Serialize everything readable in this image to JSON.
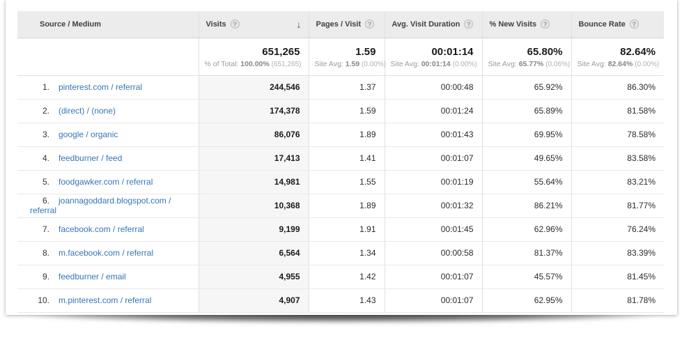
{
  "colors": {
    "link_blue": "#3575b9",
    "header_bg": "#ececec",
    "sorted_column_bg": "#f6f6f6"
  },
  "header": {
    "source_medium": "Source / Medium",
    "visits": "Visits",
    "pages_visit": "Pages / Visit",
    "avg_duration": "Avg. Visit Duration",
    "new_visits": "% New Visits",
    "bounce_rate": "Bounce Rate",
    "help_icon": "?",
    "sort_arrow": "↓"
  },
  "summary": {
    "visits": {
      "value": "651,265",
      "label": "% of Total:",
      "avg": "100.00%",
      "delta": "(651,265)"
    },
    "pages_visit": {
      "value": "1.59",
      "label": "Site Avg:",
      "avg": "1.59",
      "delta": "(0.00%)"
    },
    "avg_duration": {
      "value": "00:01:14",
      "label": "Site Avg:",
      "avg": "00:01:14",
      "delta": "(0.00%)"
    },
    "new_visits": {
      "value": "65.80%",
      "label": "Site Avg:",
      "avg": "65.77%",
      "delta": "(0.06%)"
    },
    "bounce_rate": {
      "value": "82.64%",
      "label": "Site Avg:",
      "avg": "82.64%",
      "delta": "(0.00%)"
    }
  },
  "rows": [
    {
      "rank": "1.",
      "source": "pinterest.com / referral",
      "visits": "244,546",
      "pages_visit": "1.37",
      "avg_duration": "00:00:48",
      "new_visits": "65.92%",
      "bounce_rate": "86.30%"
    },
    {
      "rank": "2.",
      "source": "(direct) / (none)",
      "visits": "174,378",
      "pages_visit": "1.59",
      "avg_duration": "00:01:24",
      "new_visits": "65.89%",
      "bounce_rate": "81.58%"
    },
    {
      "rank": "3.",
      "source": "google / organic",
      "visits": "86,076",
      "pages_visit": "1.89",
      "avg_duration": "00:01:43",
      "new_visits": "69.95%",
      "bounce_rate": "78.58%"
    },
    {
      "rank": "4.",
      "source": "feedburner / feed",
      "visits": "17,413",
      "pages_visit": "1.41",
      "avg_duration": "00:01:07",
      "new_visits": "49.65%",
      "bounce_rate": "83.58%"
    },
    {
      "rank": "5.",
      "source": "foodgawker.com / referral",
      "visits": "14,981",
      "pages_visit": "1.55",
      "avg_duration": "00:01:19",
      "new_visits": "55.64%",
      "bounce_rate": "83.21%"
    },
    {
      "rank": "6.",
      "source": "joannagoddard.blogspot.com / referral",
      "visits": "10,368",
      "pages_visit": "1.89",
      "avg_duration": "00:01:32",
      "new_visits": "86.21%",
      "bounce_rate": "81.77%"
    },
    {
      "rank": "7.",
      "source": "facebook.com / referral",
      "visits": "9,199",
      "pages_visit": "1.91",
      "avg_duration": "00:01:45",
      "new_visits": "62.96%",
      "bounce_rate": "76.24%"
    },
    {
      "rank": "8.",
      "source": "m.facebook.com / referral",
      "visits": "6,564",
      "pages_visit": "1.34",
      "avg_duration": "00:00:58",
      "new_visits": "81.37%",
      "bounce_rate": "83.39%"
    },
    {
      "rank": "9.",
      "source": "feedburner / email",
      "visits": "4,955",
      "pages_visit": "1.42",
      "avg_duration": "00:01:07",
      "new_visits": "45.57%",
      "bounce_rate": "81.45%"
    },
    {
      "rank": "10.",
      "source": "m.pinterest.com / referral",
      "visits": "4,907",
      "pages_visit": "1.43",
      "avg_duration": "00:01:07",
      "new_visits": "62.95%",
      "bounce_rate": "81.78%"
    }
  ]
}
